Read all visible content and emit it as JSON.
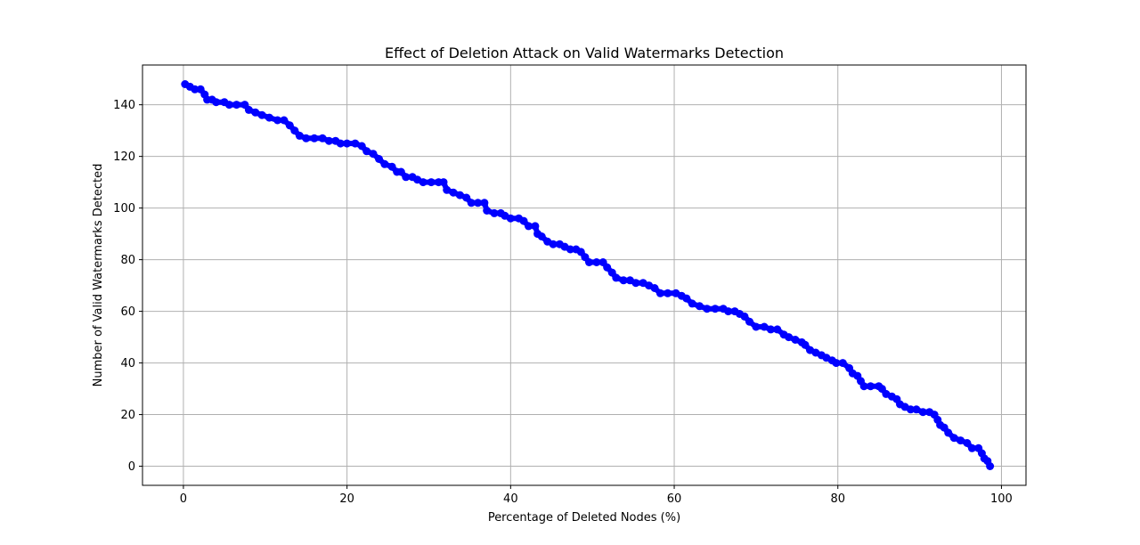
{
  "chart_data": {
    "type": "line",
    "title": "Effect of Deletion Attack on Valid Watermarks Detection",
    "xlabel": "Percentage of Deleted Nodes (%)",
    "ylabel": "Number of Valid Watermarks Detected",
    "xlim": [
      -5,
      103
    ],
    "ylim": [
      -7.4,
      155.4
    ],
    "x_ticks": [
      0,
      20,
      40,
      60,
      80,
      100
    ],
    "y_ticks": [
      0,
      20,
      40,
      60,
      80,
      100,
      120,
      140
    ],
    "grid": true,
    "marker": "circle",
    "series": [
      {
        "color": "#0000ff",
        "points": [
          [
            0.2,
            148
          ],
          [
            0.8,
            147
          ],
          [
            1.4,
            146
          ],
          [
            2.1,
            146
          ],
          [
            2.6,
            144
          ],
          [
            2.9,
            142
          ],
          [
            3.5,
            142
          ],
          [
            4.0,
            141
          ],
          [
            5.0,
            141
          ],
          [
            5.6,
            140
          ],
          [
            6.5,
            140
          ],
          [
            7.5,
            140
          ],
          [
            8.0,
            138
          ],
          [
            8.8,
            137
          ],
          [
            9.6,
            136
          ],
          [
            10.5,
            135
          ],
          [
            11.5,
            134
          ],
          [
            12.3,
            134
          ],
          [
            13.0,
            132
          ],
          [
            13.6,
            130
          ],
          [
            14.2,
            128
          ],
          [
            15.0,
            127
          ],
          [
            16.0,
            127
          ],
          [
            17.0,
            127
          ],
          [
            17.8,
            126
          ],
          [
            18.6,
            126
          ],
          [
            19.2,
            125
          ],
          [
            20.0,
            125
          ],
          [
            21.0,
            125
          ],
          [
            21.8,
            124
          ],
          [
            22.4,
            122
          ],
          [
            23.2,
            121
          ],
          [
            23.9,
            119
          ],
          [
            24.6,
            117
          ],
          [
            25.5,
            116
          ],
          [
            26.1,
            114
          ],
          [
            26.6,
            114
          ],
          [
            27.2,
            112
          ],
          [
            28.0,
            112
          ],
          [
            28.6,
            111
          ],
          [
            29.3,
            110
          ],
          [
            30.3,
            110
          ],
          [
            31.2,
            110
          ],
          [
            31.8,
            110
          ],
          [
            32.2,
            107
          ],
          [
            33.0,
            106
          ],
          [
            33.8,
            105
          ],
          [
            34.6,
            104
          ],
          [
            35.2,
            102
          ],
          [
            36.0,
            102
          ],
          [
            36.8,
            102
          ],
          [
            37.1,
            99
          ],
          [
            38.0,
            98
          ],
          [
            38.8,
            98
          ],
          [
            39.3,
            97
          ],
          [
            40.0,
            96
          ],
          [
            41.0,
            96
          ],
          [
            41.6,
            95
          ],
          [
            42.2,
            93
          ],
          [
            43.0,
            93
          ],
          [
            43.3,
            90
          ],
          [
            43.8,
            89
          ],
          [
            44.5,
            87
          ],
          [
            45.2,
            86
          ],
          [
            46.0,
            86
          ],
          [
            46.6,
            85
          ],
          [
            47.3,
            84
          ],
          [
            48.0,
            84
          ],
          [
            48.6,
            83
          ],
          [
            49.1,
            81
          ],
          [
            49.6,
            79
          ],
          [
            50.5,
            79
          ],
          [
            51.3,
            79
          ],
          [
            51.8,
            77
          ],
          [
            52.4,
            75
          ],
          [
            52.9,
            73
          ],
          [
            53.8,
            72
          ],
          [
            54.6,
            72
          ],
          [
            55.3,
            71
          ],
          [
            56.2,
            71
          ],
          [
            56.9,
            70
          ],
          [
            57.6,
            69
          ],
          [
            58.3,
            67
          ],
          [
            59.2,
            67
          ],
          [
            60.2,
            67
          ],
          [
            60.9,
            66
          ],
          [
            61.5,
            65
          ],
          [
            62.2,
            63
          ],
          [
            63.1,
            62
          ],
          [
            64.0,
            61
          ],
          [
            65.0,
            61
          ],
          [
            66.0,
            61
          ],
          [
            66.6,
            60
          ],
          [
            67.4,
            60
          ],
          [
            68.0,
            59
          ],
          [
            68.6,
            58
          ],
          [
            69.2,
            56
          ],
          [
            70.0,
            54
          ],
          [
            71.0,
            54
          ],
          [
            71.8,
            53
          ],
          [
            72.6,
            53
          ],
          [
            73.4,
            51
          ],
          [
            74.0,
            50
          ],
          [
            74.8,
            49
          ],
          [
            75.6,
            48
          ],
          [
            76.0,
            47
          ],
          [
            76.6,
            45
          ],
          [
            77.3,
            44
          ],
          [
            78.0,
            43
          ],
          [
            78.6,
            42
          ],
          [
            79.3,
            41
          ],
          [
            79.8,
            40
          ],
          [
            80.6,
            40
          ],
          [
            81.4,
            38
          ],
          [
            81.8,
            36
          ],
          [
            82.4,
            35
          ],
          [
            82.8,
            33
          ],
          [
            83.2,
            31
          ],
          [
            84.0,
            31
          ],
          [
            85.0,
            31
          ],
          [
            85.4,
            30
          ],
          [
            85.9,
            28
          ],
          [
            86.6,
            27
          ],
          [
            87.2,
            26
          ],
          [
            87.6,
            24
          ],
          [
            88.2,
            23
          ],
          [
            88.9,
            22
          ],
          [
            89.6,
            22
          ],
          [
            90.4,
            21
          ],
          [
            91.2,
            21
          ],
          [
            91.8,
            20
          ],
          [
            92.2,
            18
          ],
          [
            92.5,
            16
          ],
          [
            93.0,
            15
          ],
          [
            93.5,
            13
          ],
          [
            94.2,
            11
          ],
          [
            95.0,
            10
          ],
          [
            95.8,
            9
          ],
          [
            96.4,
            7
          ],
          [
            97.2,
            7
          ],
          [
            97.6,
            5
          ],
          [
            97.9,
            3
          ],
          [
            98.3,
            2
          ],
          [
            98.6,
            0
          ]
        ]
      }
    ]
  }
}
